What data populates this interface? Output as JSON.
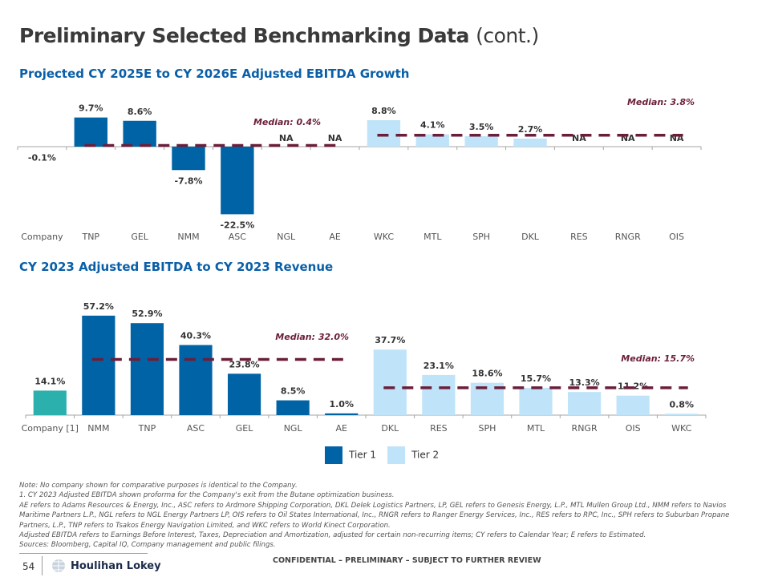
{
  "header": {
    "title_bold": "Preliminary Selected Benchmarking Data",
    "title_light": "(cont.)"
  },
  "colors": {
    "tier1": "#0063a5",
    "tier2": "#bfe4f9",
    "company": "#2bb0ad",
    "median": "#6b1e3a",
    "axis": "#a6a6a6"
  },
  "chart_data": [
    {
      "type": "bar",
      "title": "Projected CY 2025E to CY 2026E Adjusted EBITDA Growth",
      "categories": [
        "Company",
        "TNP",
        "GEL",
        "NMM",
        "ASC",
        "NGL",
        "AE",
        "WKC",
        "MTL",
        "SPH",
        "DKL",
        "RES",
        "RNGR",
        "OIS"
      ],
      "values": [
        -0.1,
        9.7,
        8.6,
        -7.8,
        -22.5,
        null,
        null,
        8.8,
        4.1,
        3.5,
        2.7,
        null,
        null,
        null
      ],
      "labels": [
        "-0.1%",
        "9.7%",
        "8.6%",
        "-7.8%",
        "-22.5%",
        "NA",
        "NA",
        "8.8%",
        "4.1%",
        "3.5%",
        "2.7%",
        "NA",
        "NA",
        "NA"
      ],
      "tiers": [
        "company",
        "tier1",
        "tier1",
        "tier1",
        "tier1",
        "tier1",
        "tier1",
        "tier2",
        "tier2",
        "tier2",
        "tier2",
        "tier2",
        "tier2",
        "tier2"
      ],
      "medians": [
        {
          "label": "Median: 0.4%",
          "value": 0.4,
          "tier": "tier1"
        },
        {
          "label": "Median: 3.8%",
          "value": 3.8,
          "tier": "tier2"
        }
      ]
    },
    {
      "type": "bar",
      "title": "CY 2023 Adjusted EBITDA to CY 2023 Revenue",
      "categories": [
        "Company [1]",
        "NMM",
        "TNP",
        "ASC",
        "GEL",
        "NGL",
        "AE",
        "DKL",
        "RES",
        "SPH",
        "MTL",
        "RNGR",
        "OIS",
        "WKC"
      ],
      "values": [
        14.1,
        57.2,
        52.9,
        40.3,
        23.8,
        8.5,
        1.0,
        37.7,
        23.1,
        18.6,
        15.7,
        13.3,
        11.2,
        0.8
      ],
      "labels": [
        "14.1%",
        "57.2%",
        "52.9%",
        "40.3%",
        "23.8%",
        "8.5%",
        "1.0%",
        "37.7%",
        "23.1%",
        "18.6%",
        "15.7%",
        "13.3%",
        "11.2%",
        "0.8%"
      ],
      "tiers": [
        "company",
        "tier1",
        "tier1",
        "tier1",
        "tier1",
        "tier1",
        "tier1",
        "tier2",
        "tier2",
        "tier2",
        "tier2",
        "tier2",
        "tier2",
        "tier2"
      ],
      "medians": [
        {
          "label": "Median: 32.0%",
          "value": 32.0,
          "tier": "tier1"
        },
        {
          "label": "Median: 15.7%",
          "value": 15.7,
          "tier": "tier2"
        }
      ]
    }
  ],
  "legend": [
    "Tier 1",
    "Tier 2"
  ],
  "notes": [
    "Note: No company shown for comparative purposes is identical to the Company.",
    "1. CY 2023 Adjusted EBITDA shown proforma for the Company's exit from the Butane optimization business.",
    "AE refers to Adams Resources & Energy, Inc., ASC refers to Ardmore Shipping Corporation, DKL Delek Logistics Partners, LP, GEL refers to Genesis Energy, L.P., MTL Mullen Group Ltd., NMM refers to Navios Maritime Partners L.P., NGL refers to NGL Energy Partners LP, OIS refers to Oil States International, Inc., RNGR refers to Ranger Energy Services, Inc., RES refers to RPC, Inc., SPH refers to Suburban Propane Partners, L.P., TNP refers to Tsakos Energy Navigation Limited, and WKC refers to World Kinect Corporation.",
    "Adjusted EBITDA refers to Earnings Before Interest, Taxes, Depreciation and Amortization, adjusted for certain non-recurring items; CY refers to Calendar Year; E refers to Estimated.",
    "Sources: Bloomberg, Capital IQ, Company management and public filings."
  ],
  "footer": {
    "page": "54",
    "logo": "Houlihan Lokey",
    "confidential": "CONFIDENTIAL – PRELIMINARY – SUBJECT TO FURTHER REVIEW"
  }
}
